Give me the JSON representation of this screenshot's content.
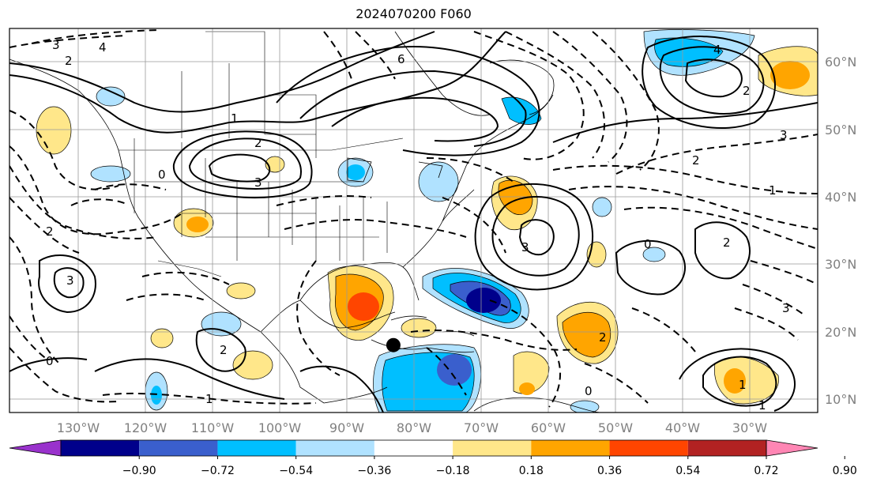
{
  "title": "2024070200 F060",
  "map": {
    "lon_labels": [
      "130°W",
      "120°W",
      "110°W",
      "100°W",
      "90°W",
      "80°W",
      "70°W",
      "60°W",
      "50°W",
      "40°W",
      "30°W"
    ],
    "lat_labels": [
      "60°N",
      "50°N",
      "40°N",
      "30°N",
      "20°N",
      "10°N"
    ],
    "lon_range": [
      -138,
      -18
    ],
    "lat_range": [
      8,
      65
    ],
    "storm_marker": {
      "lon": -81,
      "lat": 18
    }
  },
  "colorbar": {
    "ticks": [
      "−0.90",
      "−0.72",
      "−0.54",
      "−0.36",
      "−0.18",
      "0.18",
      "0.36",
      "0.54",
      "0.72",
      "0.90"
    ],
    "colors": [
      "#9932cc",
      "#00008b",
      "#3a5fcd",
      "#00bfff",
      "#b0e2ff",
      "#ffffff",
      "#ffe78a",
      "#ffa500",
      "#ff4500",
      "#b22222",
      "#ff86b4"
    ]
  },
  "contour_labels": [
    "3",
    "2",
    "1",
    "0",
    "4",
    "6",
    "2",
    "3",
    "4",
    "2",
    "1",
    "3",
    "2",
    "2",
    "3",
    "0",
    "1",
    "0",
    "2",
    "3",
    "2",
    "1",
    "0",
    "1",
    "2",
    "3"
  ]
}
